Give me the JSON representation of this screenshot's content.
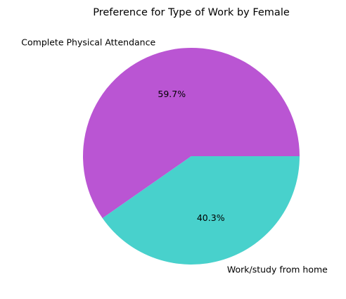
{
  "chart_data": {
    "type": "pie",
    "title": "Preference for Type of Work by Female",
    "slices": [
      {
        "label": "Complete Physical Attendance",
        "value": 59.7,
        "percent_label": "59.7%",
        "color": "#BA55D3"
      },
      {
        "label": "Work/study from home",
        "value": 40.3,
        "percent_label": "40.3%",
        "color": "#48D1CC"
      }
    ],
    "start_angle": "3 o'clock",
    "direction": "counterclockwise",
    "legend": "none"
  }
}
